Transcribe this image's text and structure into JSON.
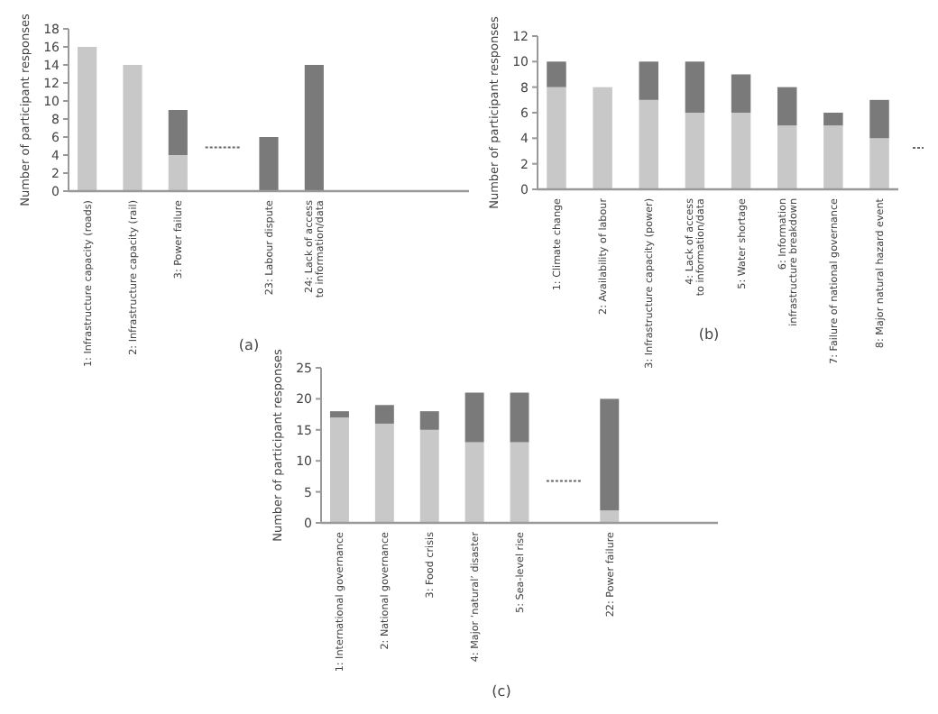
{
  "chart_data": [
    {
      "type": "bar",
      "stacked": true,
      "ylabel": "Number of participant responses",
      "categories": [
        "1: Infrastructure capacity (roads)",
        "2: Infrastructure capacity (rail)",
        "3: Power failure",
        null,
        "23: Labour dispute",
        "24: Lack of access to information/data",
        null,
        null,
        null
      ],
      "series": [
        {
          "color": "#c8c8c8",
          "values": [
            16,
            14,
            4,
            null,
            null,
            null,
            null,
            null,
            null
          ]
        },
        {
          "color": "#7a7a7a",
          "values": [
            null,
            null,
            5,
            null,
            6,
            14,
            null,
            null,
            null
          ]
        }
      ],
      "ylim": [
        0,
        18
      ],
      "yticks": [
        0,
        2,
        4,
        6,
        8,
        10,
        12,
        14,
        16,
        18
      ],
      "grid": false,
      "annotations": [
        "(a)"
      ]
    },
    {
      "type": "bar",
      "stacked": true,
      "ylabel": "Number of participant responses",
      "categories": [
        "1: Climate change",
        "2: Availability of labour",
        "3: Infrastructure capacity (power)",
        "4: Lack of access to information/data",
        "5: Water shortage",
        "6: Information infrastructure breakdown",
        "7: Failure of national governance",
        "8: Major natural hazard event"
      ],
      "series": [
        {
          "color": "#c8c8c8",
          "values": [
            8,
            8,
            7,
            6,
            6,
            5,
            5,
            4
          ]
        },
        {
          "color": "#7a7a7a",
          "values": [
            2,
            null,
            3,
            4,
            3,
            3,
            1,
            3
          ]
        }
      ],
      "ylim": [
        0,
        12
      ],
      "yticks": [
        0,
        2,
        4,
        6,
        8,
        10,
        12
      ],
      "grid": false,
      "annotations": [
        "(b)"
      ]
    },
    {
      "type": "bar",
      "stacked": true,
      "ylabel": "Number of participant responses",
      "categories": [
        "1: International governance",
        "2: National governance",
        "3: Food crisis",
        "4: Major ‘natural’ disaster",
        "5: Sea-level rise",
        null,
        "22: Power failure",
        null,
        null
      ],
      "series": [
        {
          "color": "#c8c8c8",
          "values": [
            17,
            16,
            15,
            13,
            13,
            null,
            2,
            null,
            null
          ]
        },
        {
          "color": "#7a7a7a",
          "values": [
            1,
            3,
            3,
            8,
            8,
            null,
            18,
            null,
            null
          ]
        }
      ],
      "ylim": [
        0,
        25
      ],
      "yticks": [
        0,
        5,
        10,
        15,
        20,
        25
      ],
      "grid": false,
      "annotations": [
        "(c)"
      ]
    }
  ]
}
